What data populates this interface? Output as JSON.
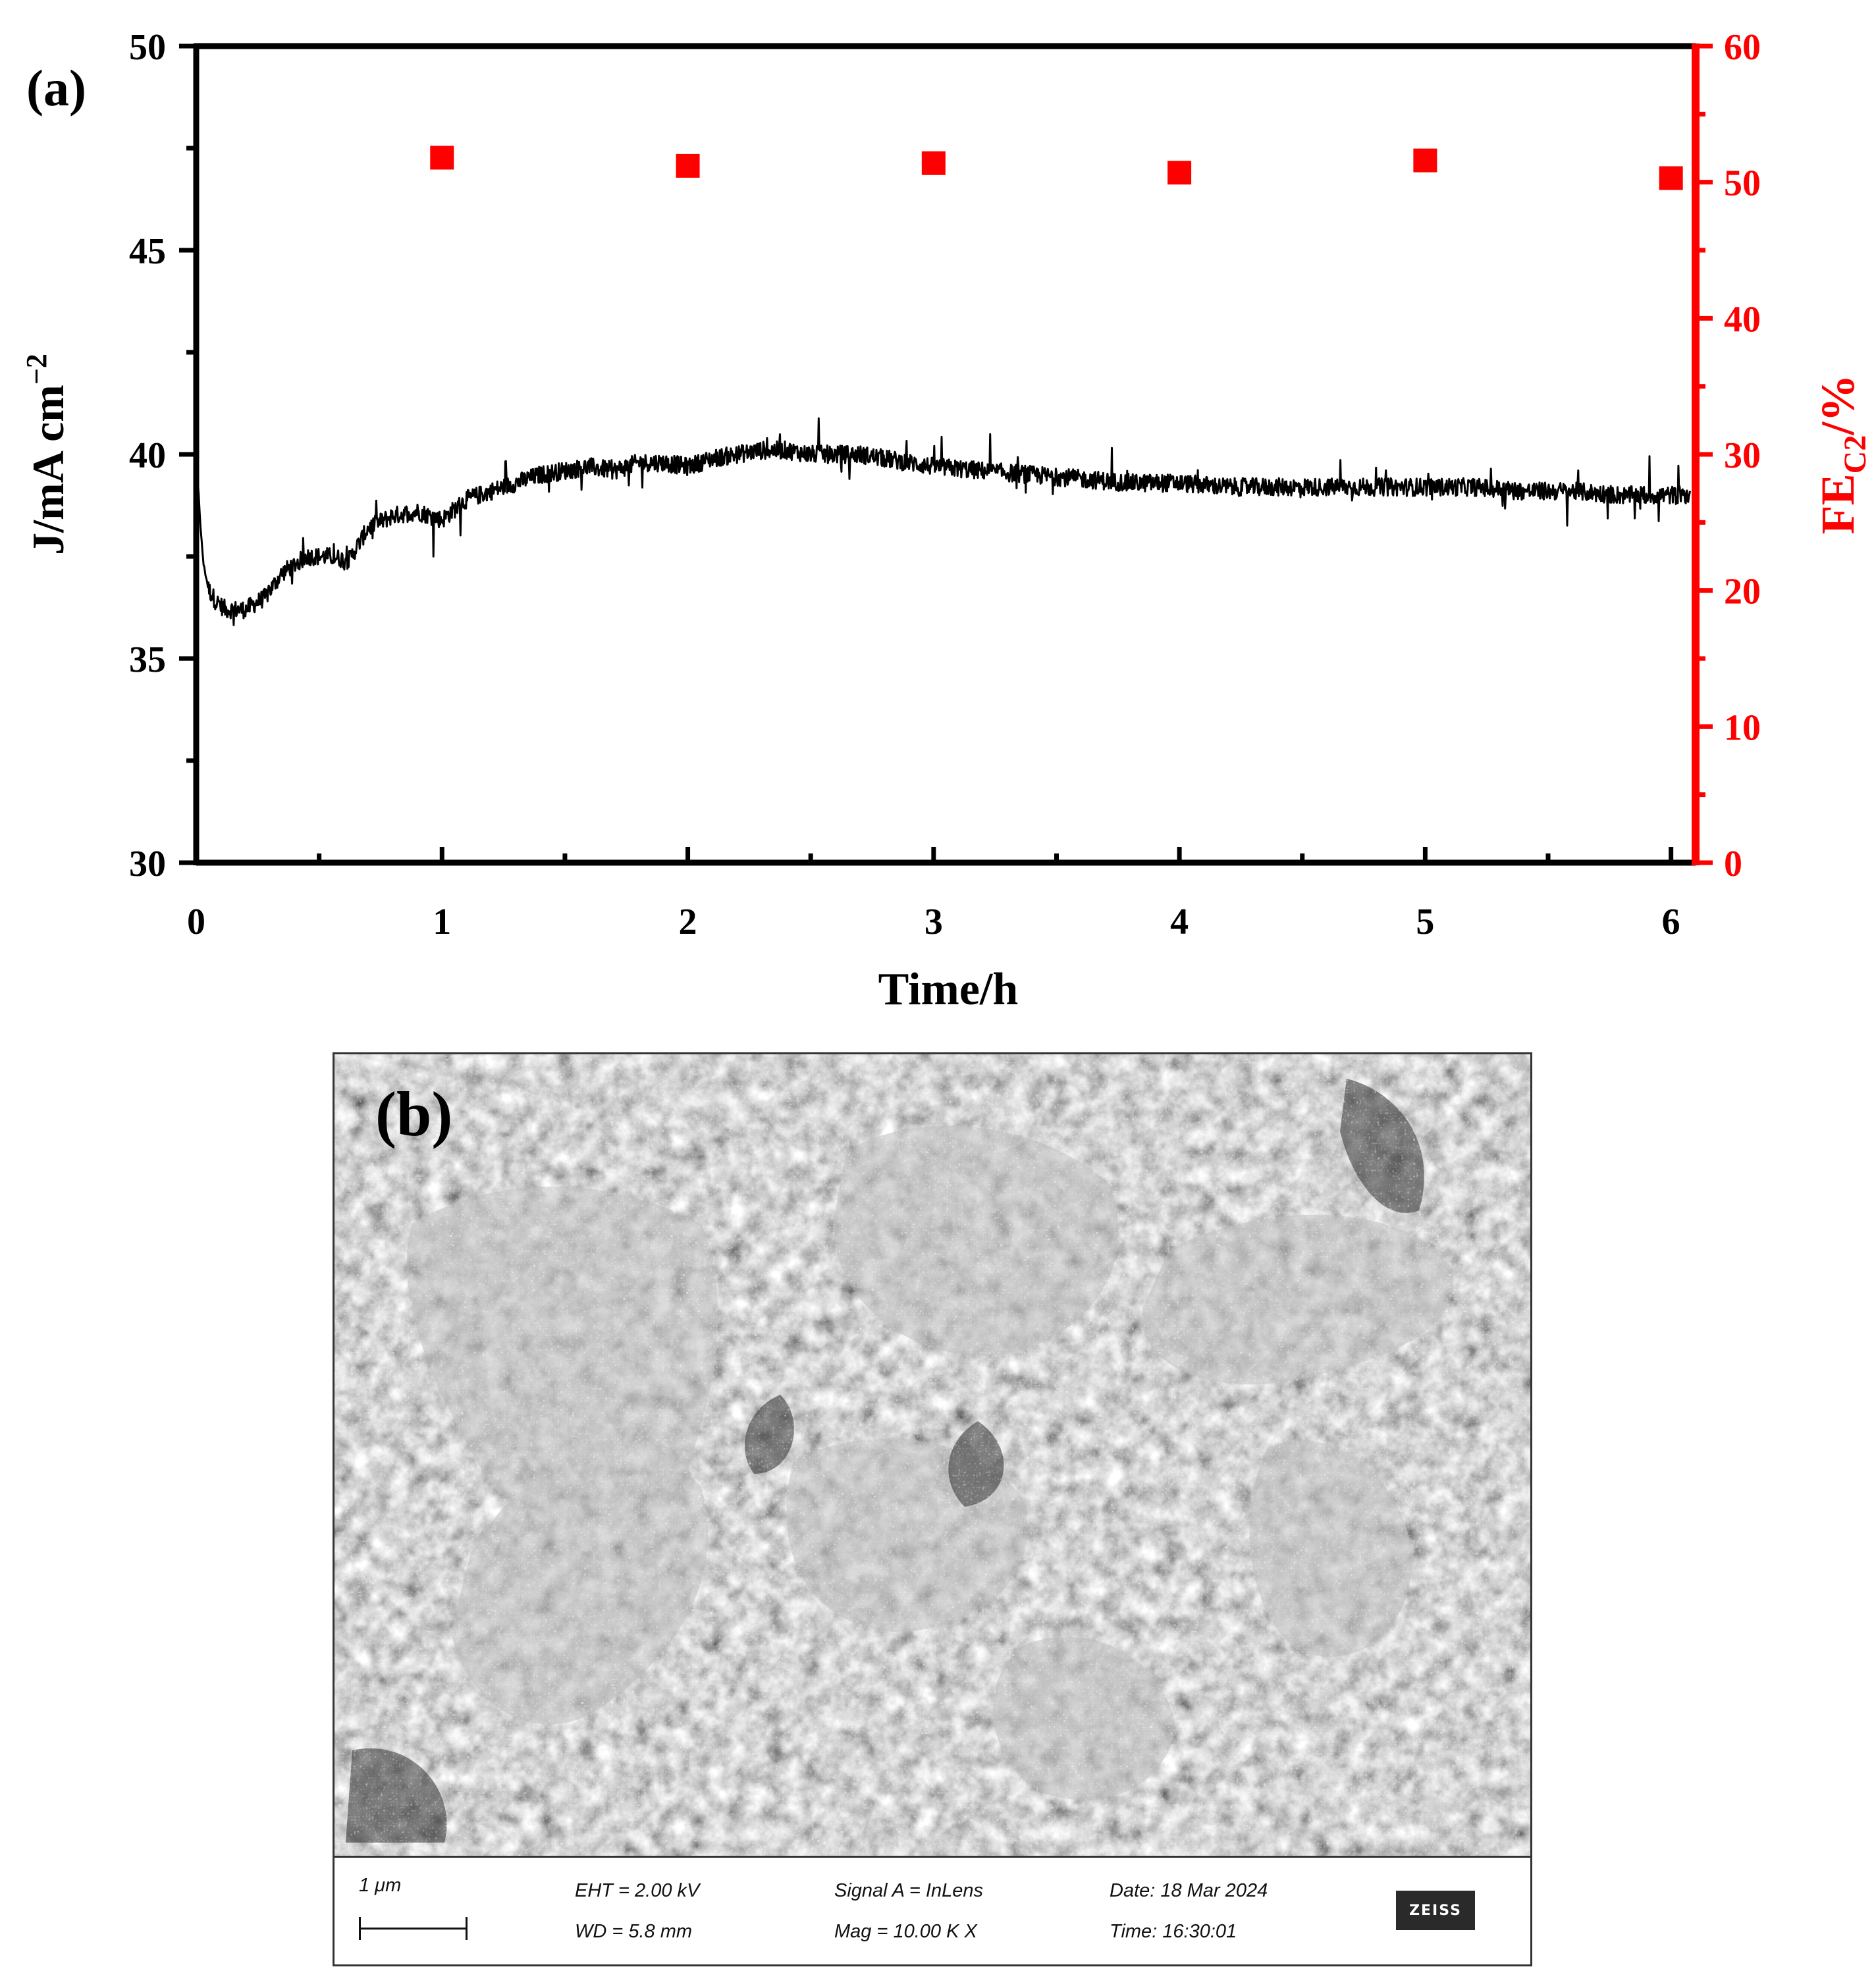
{
  "panel_a": {
    "label": "(a)",
    "x_axis": {
      "title": "Time/h",
      "ticks": [
        "0",
        "1",
        "2",
        "3",
        "4",
        "5",
        "6"
      ]
    },
    "y_left": {
      "title_main": "J/mA cm",
      "title_sup": "−2",
      "ticks": [
        "30",
        "35",
        "40",
        "45",
        "50"
      ]
    },
    "y_right": {
      "title_main": "FE",
      "title_sub": "C2",
      "title_tail": "/%",
      "ticks": [
        "0",
        "10",
        "20",
        "30",
        "40",
        "50",
        "60"
      ],
      "color": "#ff0000"
    }
  },
  "chart_data": {
    "type": "line",
    "xlim": [
      0,
      6.1
    ],
    "ylim_left": [
      30,
      50
    ],
    "ylim_right": [
      0,
      60
    ],
    "grid": false,
    "series": [
      {
        "axis": "left",
        "style": "line",
        "color": "#000000",
        "x": [
          0,
          0.01,
          0.02,
          0.03,
          0.05,
          0.08,
          0.12,
          0.2,
          0.28,
          0.35,
          0.45,
          0.55,
          0.62,
          0.7,
          0.8,
          0.9,
          1.0,
          1.1,
          1.2,
          1.3,
          1.4,
          1.5,
          1.6,
          1.7,
          1.8,
          1.9,
          2.0,
          2.1,
          2.2,
          2.3,
          2.4,
          2.5,
          2.6,
          2.7,
          2.8,
          2.9,
          3.0,
          3.2,
          3.4,
          3.6,
          3.8,
          4.0,
          4.2,
          4.4,
          4.6,
          4.8,
          5.0,
          5.2,
          5.4,
          5.6,
          5.8,
          6.0,
          6.08
        ],
        "y": [
          39.8,
          39.0,
          38.0,
          37.3,
          36.7,
          36.4,
          36.2,
          36.2,
          36.5,
          37.1,
          37.5,
          37.5,
          37.4,
          38.2,
          38.5,
          38.6,
          38.4,
          38.9,
          39.1,
          39.3,
          39.5,
          39.6,
          39.7,
          39.6,
          39.8,
          39.8,
          39.7,
          39.9,
          40.0,
          40.1,
          40.1,
          40.0,
          40.0,
          40.0,
          39.9,
          39.8,
          39.7,
          39.6,
          39.5,
          39.4,
          39.3,
          39.3,
          39.2,
          39.2,
          39.2,
          39.2,
          39.2,
          39.2,
          39.1,
          39.1,
          39.0,
          39.0,
          39.0
        ]
      },
      {
        "axis": "right",
        "style": "square-markers",
        "color": "#ff0000",
        "x": [
          1,
          2,
          3,
          4,
          5,
          6
        ],
        "y": [
          51.8,
          51.2,
          51.4,
          50.7,
          51.6,
          50.3
        ]
      }
    ]
  },
  "panel_b": {
    "label": "(b)",
    "databar": {
      "scale": "1 μm",
      "eht": "EHT =  2.00 kV",
      "wd": "WD =  5.8 mm",
      "signal": "Signal A = InLens",
      "mag": "Mag =    10.00 K X",
      "date": "Date: 18 Mar 2024",
      "time": "Time: 16:30:01",
      "logo": "ZEISS"
    }
  }
}
